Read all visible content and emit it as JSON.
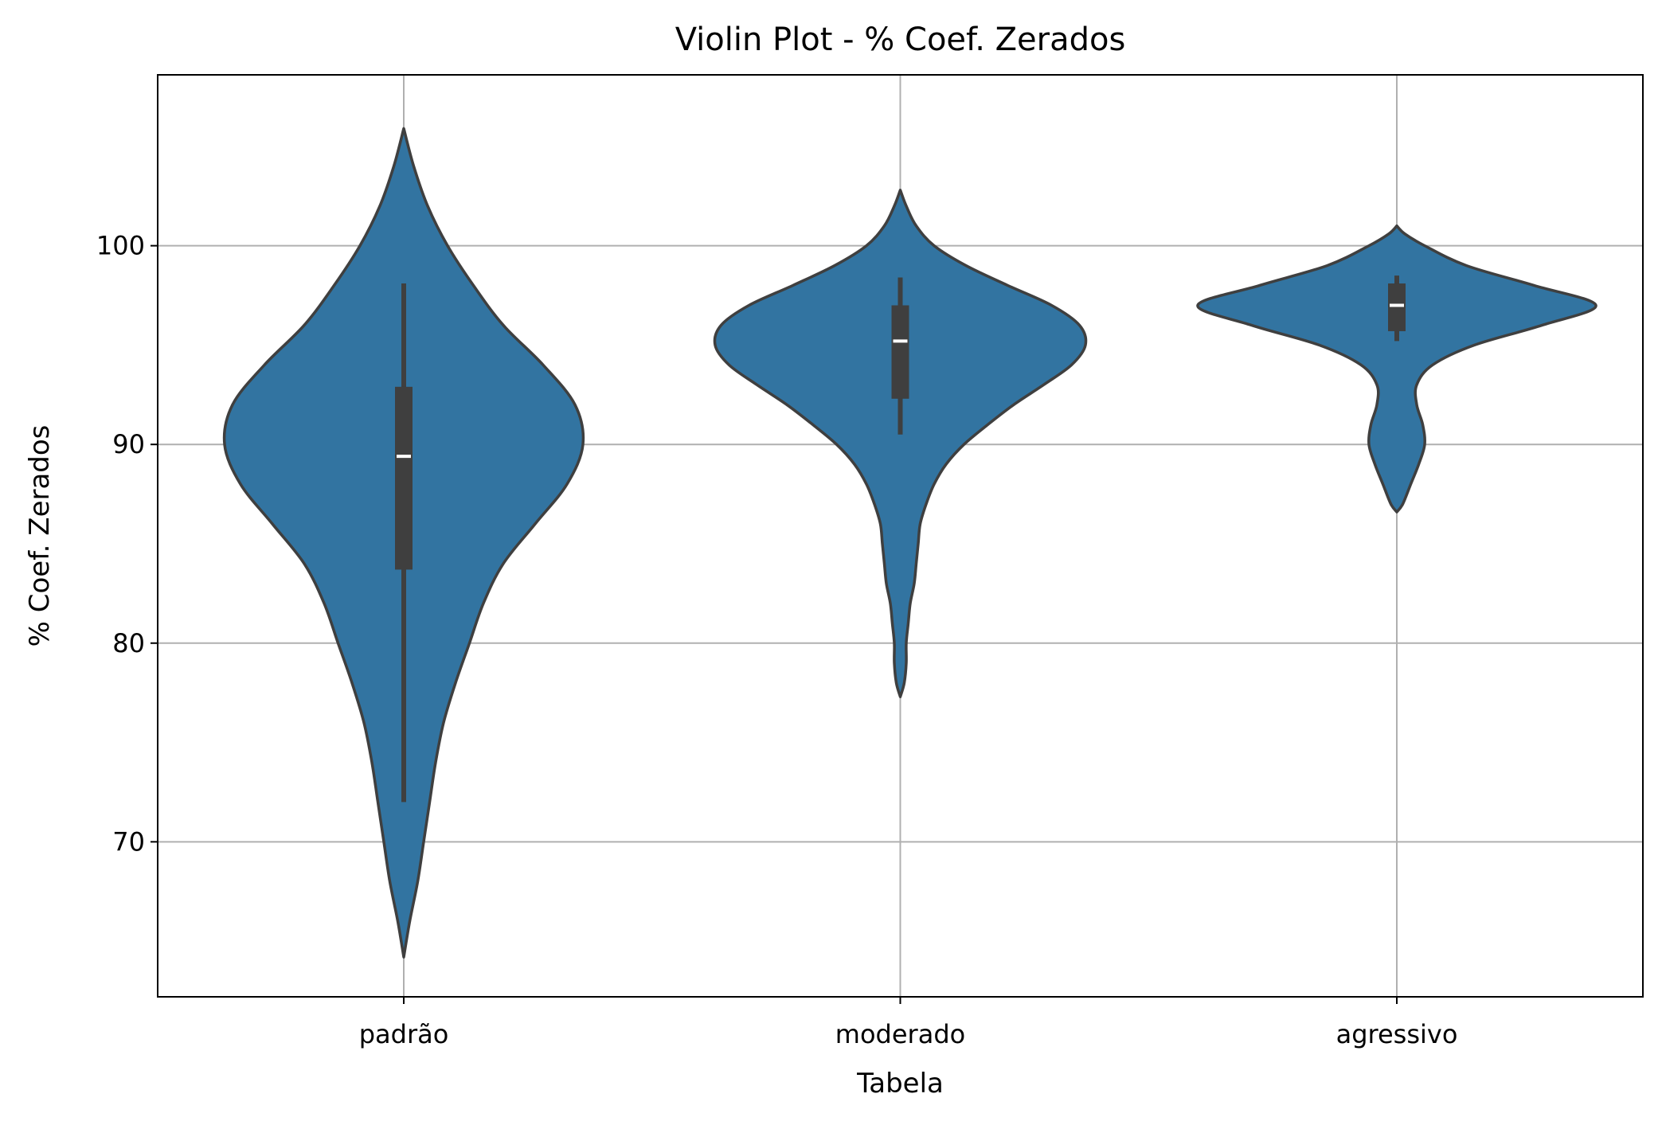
{
  "chart_data": {
    "type": "violin",
    "title": "Violin Plot - % Coef. Zerados",
    "xlabel": "Tabela",
    "ylabel": "% Coef. Zerados",
    "categories": [
      "padrão",
      "moderado",
      "agressivo"
    ],
    "ylim": [
      62.2,
      108.6
    ],
    "yticks": [
      70,
      80,
      90,
      100
    ],
    "grid": true,
    "colors": {
      "fill": "#3274a1",
      "outline": "#3f3f3f",
      "box": "#3f3f3f",
      "median": "#ffffff",
      "grid": "#b0b0b0"
    },
    "violins": [
      {
        "category": "padrão",
        "min": 72.0,
        "q1": 83.7,
        "median": 89.4,
        "q3": 92.9,
        "max": 98.1,
        "kde_range": [
          64.2,
          105.9
        ],
        "density": [
          [
            64.2,
            0.0
          ],
          [
            66,
            0.03
          ],
          [
            68,
            0.07
          ],
          [
            70,
            0.1
          ],
          [
            72,
            0.13
          ],
          [
            74,
            0.16
          ],
          [
            76,
            0.2
          ],
          [
            78,
            0.26
          ],
          [
            80,
            0.33
          ],
          [
            82,
            0.4
          ],
          [
            84,
            0.5
          ],
          [
            86,
            0.66
          ],
          [
            88,
            0.82
          ],
          [
            90,
            0.9
          ],
          [
            92,
            0.86
          ],
          [
            94,
            0.7
          ],
          [
            96,
            0.5
          ],
          [
            98,
            0.35
          ],
          [
            100,
            0.22
          ],
          [
            102,
            0.12
          ],
          [
            104,
            0.05
          ],
          [
            105.9,
            0.0
          ]
        ]
      },
      {
        "category": "moderado",
        "min": 90.5,
        "q1": 92.3,
        "median": 95.2,
        "q3": 97.0,
        "max": 98.4,
        "kde_range": [
          77.3,
          102.8
        ],
        "density": [
          [
            77.3,
            0.0
          ],
          [
            78,
            0.02
          ],
          [
            79,
            0.03
          ],
          [
            80,
            0.03
          ],
          [
            81,
            0.04
          ],
          [
            82,
            0.05
          ],
          [
            83,
            0.07
          ],
          [
            84,
            0.08
          ],
          [
            85,
            0.09
          ],
          [
            86,
            0.1
          ],
          [
            87,
            0.13
          ],
          [
            88,
            0.17
          ],
          [
            89,
            0.23
          ],
          [
            90,
            0.32
          ],
          [
            91,
            0.44
          ],
          [
            92,
            0.57
          ],
          [
            93,
            0.72
          ],
          [
            94,
            0.86
          ],
          [
            95,
            0.93
          ],
          [
            96,
            0.9
          ],
          [
            97,
            0.76
          ],
          [
            98,
            0.54
          ],
          [
            99,
            0.33
          ],
          [
            100,
            0.17
          ],
          [
            101,
            0.08
          ],
          [
            102,
            0.03
          ],
          [
            102.8,
            0.0
          ]
        ]
      },
      {
        "category": "agressivo",
        "min": 95.2,
        "q1": 95.7,
        "median": 97.0,
        "q3": 98.1,
        "max": 98.5,
        "kde_range": [
          86.6,
          101.0
        ],
        "density": [
          [
            86.6,
            0.0
          ],
          [
            87,
            0.03
          ],
          [
            88,
            0.07
          ],
          [
            89,
            0.11
          ],
          [
            90,
            0.14
          ],
          [
            91,
            0.13
          ],
          [
            92,
            0.1
          ],
          [
            93,
            0.1
          ],
          [
            94,
            0.18
          ],
          [
            95,
            0.39
          ],
          [
            96,
            0.73
          ],
          [
            97,
            1.0
          ],
          [
            98,
            0.69
          ],
          [
            99,
            0.35
          ],
          [
            100,
            0.14
          ],
          [
            100.6,
            0.04
          ],
          [
            101.0,
            0.0
          ]
        ]
      }
    ]
  }
}
